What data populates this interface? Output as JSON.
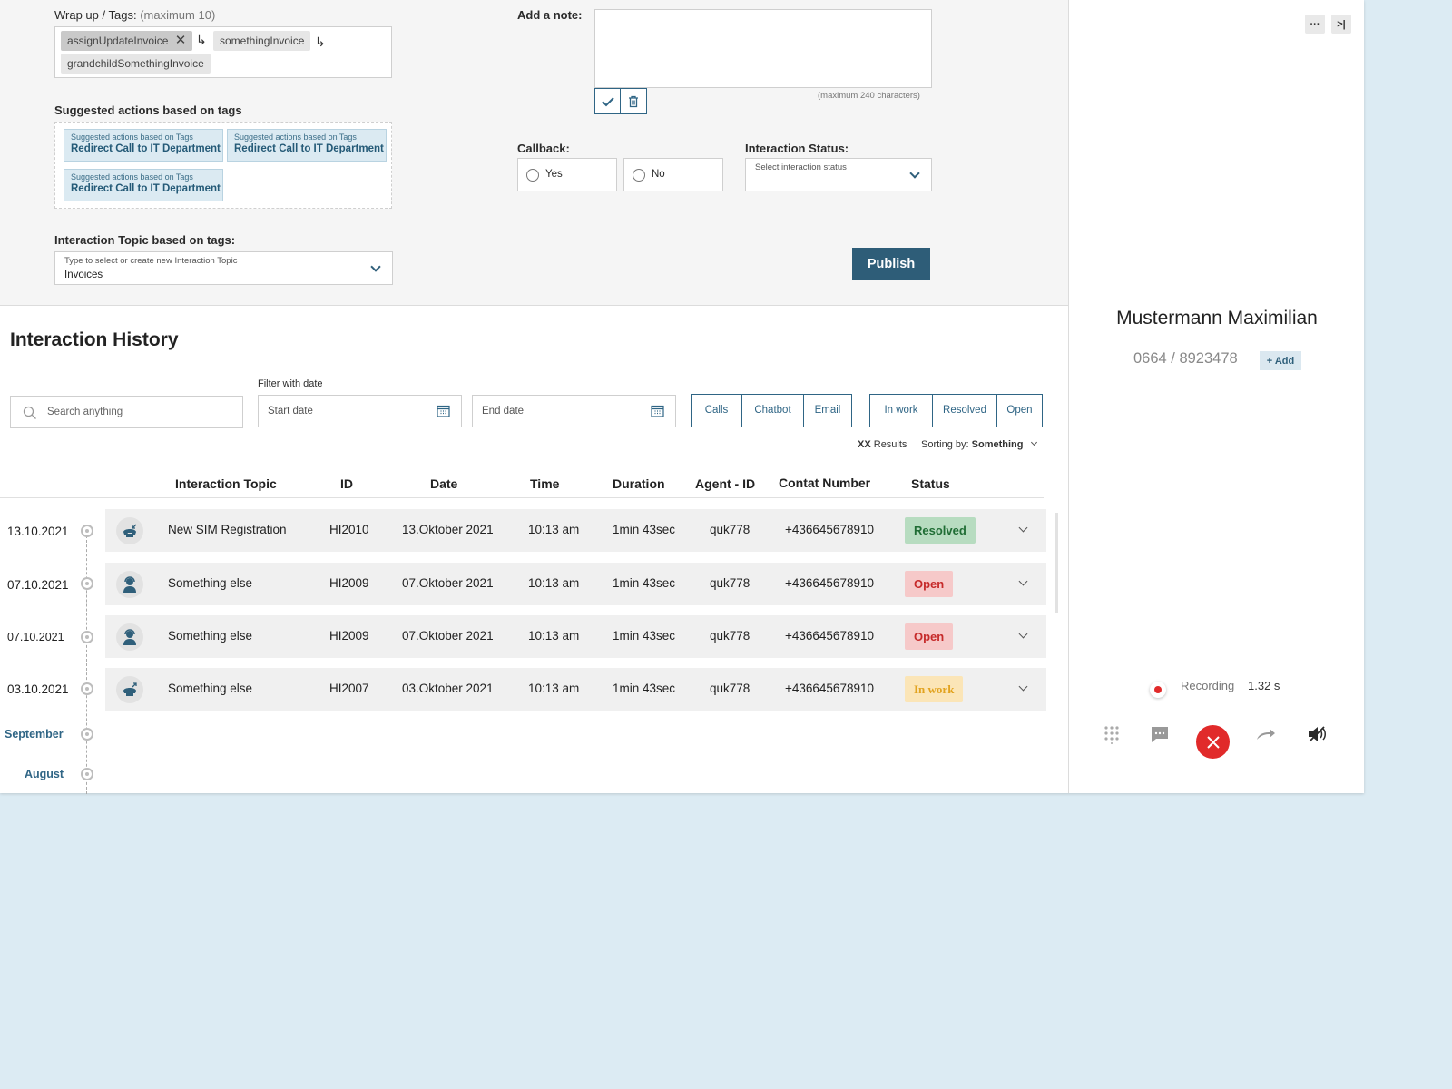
{
  "wrapup": {
    "label": "Wrap up / Tags:",
    "max": "(maximum 10)",
    "tags": [
      "assignUpdateInvoice",
      "somethingInvoice",
      "grandchildSomethingInvoice"
    ]
  },
  "suggested": {
    "title": "Suggested actions based on tags",
    "items": [
      {
        "small": "Suggested actions based on Tags",
        "big": "Redirect Call to IT Department"
      },
      {
        "small": "Suggested actions based on Tags",
        "big": "Redirect Call to IT Department"
      },
      {
        "small": "Suggested actions based on Tags",
        "big": "Redirect Call to IT Department"
      }
    ]
  },
  "topic": {
    "label": "Interaction Topic based on tags:",
    "hint": "Type to select or create new Interaction Topic",
    "value": "Invoices"
  },
  "note": {
    "label": "Add a note:",
    "max": "(maximum 240 characters)"
  },
  "callback": {
    "label": "Callback:",
    "yes": "Yes",
    "no": "No"
  },
  "status": {
    "label": "Interaction Status:",
    "placeholder": "Select interaction status"
  },
  "publish": "Publish",
  "history": {
    "title": "Interaction History",
    "search_placeholder": "Search anything",
    "filter_label": "Filter with date",
    "start_date": "Start date",
    "end_date": "End date",
    "channels": [
      "Calls",
      "Chatbot",
      "Email"
    ],
    "statuses": [
      "In work",
      "Resolved",
      "Open"
    ],
    "results_count": "XX",
    "results_label": "Results",
    "sort_label": "Sorting by:",
    "sort_value": "Something",
    "columns": [
      "Interaction Topic",
      "ID",
      "Date",
      "Time",
      "Duration",
      "Agent - ID",
      "Contat Number",
      "Status"
    ],
    "rows": [
      {
        "tl": "13.10.2021",
        "icon": "incoming-call-icon",
        "topic": "New SIM Registration",
        "id": "HI2010",
        "date": "13.Oktober 2021",
        "time": "10:13 am",
        "duration": "1min 43sec",
        "agent": "quk778",
        "number": "+436645678910",
        "status": "Resolved"
      },
      {
        "tl": "07.10.2021",
        "icon": "chatbot-agent-icon",
        "topic": "Something else",
        "id": "HI2009",
        "date": "07.Oktober 2021",
        "time": "10:13 am",
        "duration": "1min 43sec",
        "agent": "quk778",
        "number": "+436645678910",
        "status": "Open"
      },
      {
        "tl": "07.10.2021",
        "icon": "chatbot-agent-icon",
        "topic": "Something else",
        "id": "HI2009",
        "date": "07.Oktober 2021",
        "time": "10:13 am",
        "duration": "1min 43sec",
        "agent": "quk778",
        "number": "+436645678910",
        "status": "Open"
      },
      {
        "tl": "03.10.2021",
        "icon": "outgoing-call-icon",
        "topic": "Something else",
        "id": "HI2007",
        "date": "03.Oktober 2021",
        "time": "10:13 am",
        "duration": "1min 43sec",
        "agent": "quk778",
        "number": "+436645678910",
        "status": "In work"
      }
    ],
    "months": [
      "September",
      "August"
    ]
  },
  "contact": {
    "name": "Mustermann Maximilian",
    "phone": "0664 / 8923478",
    "add": "+ Add"
  },
  "recording": {
    "label": "Recording",
    "time": "1.32 s"
  },
  "colors": {
    "accent": "#2e5d78",
    "end_call": "#e12a2a",
    "resolved": "#b7dcc0",
    "open": "#f6c9c9",
    "in_work": "#fbe5b7"
  }
}
